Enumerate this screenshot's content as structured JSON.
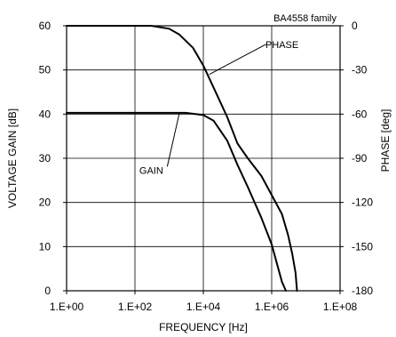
{
  "chart_data": {
    "type": "line",
    "title": "",
    "subtitle": "BA4558 family",
    "xlabel": "FREQUENCY [Hz]",
    "ylabel": "VOLTAGE GAIN [dB]",
    "y2label": "PHASE [deg]",
    "x_scale": "log",
    "xlim": [
      1,
      100000000
    ],
    "ylim": [
      0,
      60
    ],
    "y2lim": [
      -180,
      0
    ],
    "grid": true,
    "legend": "none",
    "x_ticks": [
      {
        "value": 1,
        "label": "1.E+00"
      },
      {
        "value": 100,
        "label": "1.E+02"
      },
      {
        "value": 10000,
        "label": "1.E+04"
      },
      {
        "value": 1000000,
        "label": "1.E+06"
      },
      {
        "value": 100000000,
        "label": "1.E+08"
      }
    ],
    "y_ticks": [
      {
        "value": 0,
        "label": "0"
      },
      {
        "value": 10,
        "label": "10"
      },
      {
        "value": 20,
        "label": "20"
      },
      {
        "value": 30,
        "label": "30"
      },
      {
        "value": 40,
        "label": "40"
      },
      {
        "value": 50,
        "label": "50"
      },
      {
        "value": 60,
        "label": "60"
      }
    ],
    "y2_ticks": [
      {
        "value": 0,
        "label": "0"
      },
      {
        "value": -30,
        "label": "-30"
      },
      {
        "value": -60,
        "label": "-60"
      },
      {
        "value": -90,
        "label": "-90"
      },
      {
        "value": -120,
        "label": "-120"
      },
      {
        "value": -150,
        "label": "-150"
      },
      {
        "value": -180,
        "label": "-180"
      }
    ],
    "series": [
      {
        "name": "GAIN",
        "axis": "left",
        "color": "#000000",
        "x": [
          1,
          100,
          300,
          1000,
          3000,
          10000,
          20000,
          50000,
          100000,
          200000,
          500000,
          1000000,
          1500000,
          2000000,
          2600000
        ],
        "values": [
          40.3,
          40.3,
          40.3,
          40.3,
          40.3,
          39.8,
          38.5,
          34,
          28.5,
          23.5,
          16.5,
          10.5,
          5.5,
          2,
          0
        ]
      },
      {
        "name": "PHASE",
        "axis": "right",
        "color": "#000000",
        "x": [
          1,
          100,
          300,
          1000,
          2000,
          5000,
          10000,
          20000,
          50000,
          100000,
          200000,
          500000,
          1000000,
          2000000,
          3000000,
          4000000,
          5000000,
          5500000
        ],
        "values": [
          0,
          0,
          0,
          -2,
          -6,
          -15,
          -27,
          -42,
          -62,
          -80,
          -90,
          -102,
          -115,
          -128,
          -142,
          -155,
          -168,
          -180
        ]
      }
    ],
    "annotations": [
      {
        "text": "PHASE",
        "x": 2000000,
        "y2": -15,
        "target_x": 15000,
        "target_y2": -33
      },
      {
        "text": "GAIN",
        "x": 300,
        "y": 26.5,
        "target_x": 2000,
        "target_y": 40.3
      }
    ]
  }
}
